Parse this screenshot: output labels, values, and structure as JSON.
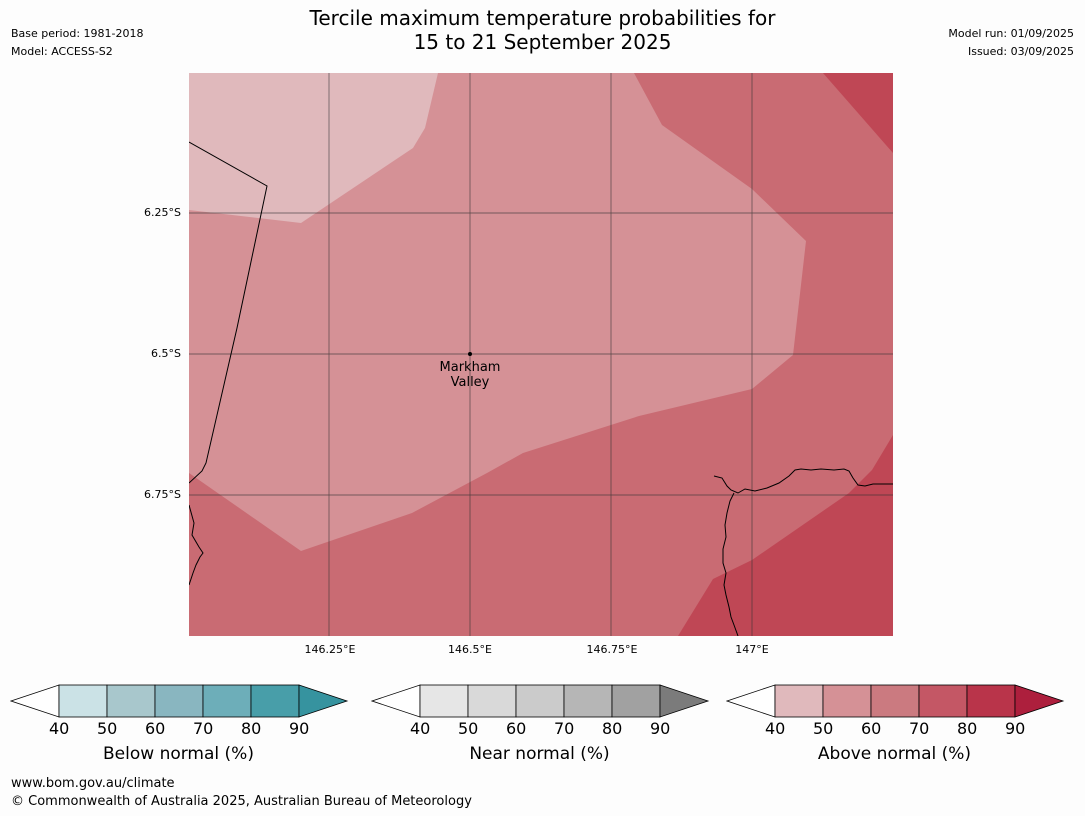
{
  "header": {
    "title_line1": "Tercile maximum temperature probabilities for",
    "title_line2": "15 to 21 September 2025",
    "base_period": "Base period: 1981-2018",
    "model": "Model: ACCESS-S2",
    "model_run": "Model run: 01/09/2025",
    "issued": "Issued: 03/09/2025"
  },
  "map": {
    "lat_labels": [
      "6.25°S",
      "6.5°S",
      "6.75°S"
    ],
    "lon_labels": [
      "146.25°E",
      "146.5°E",
      "146.75°E",
      "147°E"
    ],
    "place": {
      "line1": "Markham",
      "line2": "Valley"
    },
    "fill_colors": {
      "p40_50": "#e0b9bc",
      "p50_60": "#d59196",
      "p60_70": "#c96b73",
      "p70_80": "#bf4755"
    }
  },
  "colorbars": [
    {
      "title": "Below normal (%)",
      "ticks": [
        "40",
        "50",
        "60",
        "70",
        "80",
        "90"
      ],
      "colors": [
        "#cbe2e6",
        "#a8c7cc",
        "#89b6c0",
        "#6daeb9",
        "#489ea9"
      ],
      "arrow": "#36939f"
    },
    {
      "title": "Near normal (%)",
      "ticks": [
        "40",
        "50",
        "60",
        "70",
        "80",
        "90"
      ],
      "colors": [
        "#e6e6e6",
        "#d9d9d9",
        "#cbcbcb",
        "#b6b6b6",
        "#a1a1a1"
      ],
      "arrow": "#7b7b7b"
    },
    {
      "title": "Above normal (%)",
      "ticks": [
        "40",
        "50",
        "60",
        "70",
        "80",
        "90"
      ],
      "colors": [
        "#e0b9bc",
        "#d59196",
        "#cb7a80",
        "#c45765",
        "#b9344a"
      ],
      "arrow": "#ad1f3d"
    }
  ],
  "footer": {
    "url": "www.bom.gov.au/climate",
    "copyright": "© Commonwealth of Australia 2025, Australian Bureau of Meteorology"
  }
}
